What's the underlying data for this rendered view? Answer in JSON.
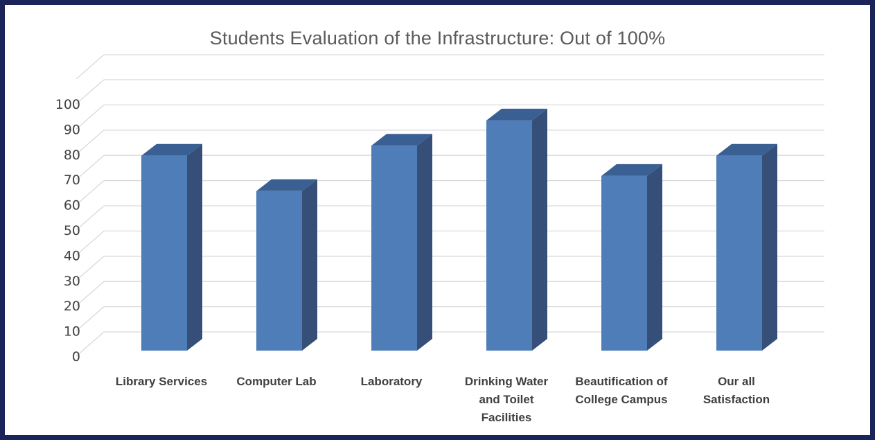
{
  "chart_data": {
    "type": "bar",
    "title": "Students Evaluation of the Infrastructure: Out of 100%",
    "categories": [
      [
        "Library Services"
      ],
      [
        "Computer Lab"
      ],
      [
        "Laboratory"
      ],
      [
        "Drinking Water",
        "and Toilet",
        "Facilities"
      ],
      [
        "Beautification of",
        "College Campus"
      ],
      [
        "Our all",
        "Satisfaction"
      ]
    ],
    "series": [
      {
        "values": [
          80,
          66,
          84,
          94,
          72,
          80
        ]
      }
    ],
    "y_ticks": [
      "0",
      "10",
      "20",
      "30",
      "40",
      "50",
      "60",
      "70",
      "80",
      "90",
      "100"
    ],
    "ylim": [
      0,
      100
    ],
    "grid": true,
    "legend": "none",
    "style_3d": true,
    "colors": {
      "bar_front": "#4f7db8",
      "bar_side": "#364f78",
      "bar_top": "#3a6093",
      "grid": "#d9d9d9",
      "border": "#1a2458"
    }
  }
}
